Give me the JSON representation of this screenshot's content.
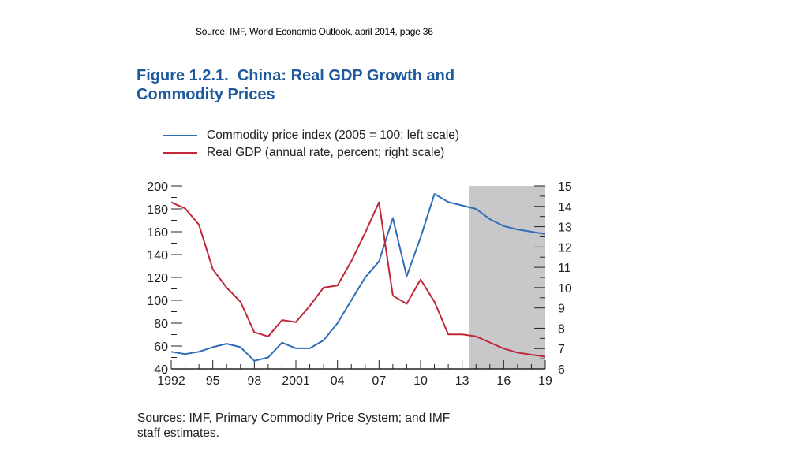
{
  "header": {
    "source_note": "Source: IMF, World Economic Outlook, april 2014, page 36"
  },
  "figure": {
    "title_line1": "Figure 1.2.1.  China: Real GDP Growth and",
    "title_line2": "Commodity Prices",
    "sources_line1": "Sources: IMF, Primary Commodity Price System; and IMF",
    "sources_line2": "staff estimates."
  },
  "colors": {
    "commodity": "#2f6db5",
    "gdp": "#c0283a",
    "shade": "#c8c8ca",
    "axis": "#222222"
  },
  "chart_data": {
    "type": "line",
    "x_tick_labels": [
      "1992",
      "95",
      "98",
      "2001",
      "04",
      "07",
      "10",
      "13",
      "16",
      "19"
    ],
    "x_tick_years": [
      1992,
      1995,
      1998,
      2001,
      2004,
      2007,
      2010,
      2013,
      2016,
      2019
    ],
    "xlim": [
      1992,
      2019
    ],
    "shaded_region": [
      2013.5,
      2019
    ],
    "left_axis": {
      "ylim": [
        40,
        200
      ],
      "ticks": [
        40,
        60,
        80,
        100,
        120,
        140,
        160,
        180,
        200
      ]
    },
    "right_axis": {
      "ylim": [
        6,
        15
      ],
      "ticks": [
        6,
        7,
        8,
        9,
        10,
        11,
        12,
        13,
        14,
        15
      ]
    },
    "legend": [
      "Commodity price index (2005 = 100; left scale)",
      "Real GDP (annual rate, percent; right scale)"
    ],
    "series": [
      {
        "name": "Commodity price index (2005 = 100; left scale)",
        "axis": "left",
        "x": [
          1992,
          1993,
          1994,
          1995,
          1996,
          1997,
          1998,
          1999,
          2000,
          2001,
          2002,
          2003,
          2004,
          2005,
          2006,
          2007,
          2008,
          2009,
          2010,
          2011,
          2012,
          2013,
          2014,
          2015,
          2016,
          2017,
          2018,
          2019
        ],
        "values": [
          55,
          53,
          55,
          59,
          62,
          59,
          47,
          50,
          63,
          58,
          58,
          65,
          80,
          100,
          120,
          134,
          172,
          121,
          155,
          193,
          186,
          183,
          180,
          171,
          165,
          162,
          160,
          158
        ]
      },
      {
        "name": "Real GDP (annual rate, percent; right scale)",
        "axis": "right",
        "x": [
          1992,
          1993,
          1994,
          1995,
          1996,
          1997,
          1998,
          1999,
          2000,
          2001,
          2002,
          2003,
          2004,
          2005,
          2006,
          2007,
          2008,
          2009,
          2010,
          2011,
          2012,
          2013,
          2014,
          2015,
          2016,
          2017,
          2018,
          2019
        ],
        "values": [
          14.2,
          13.9,
          13.1,
          10.9,
          10.0,
          9.3,
          7.8,
          7.6,
          8.4,
          8.3,
          9.1,
          10.0,
          10.1,
          11.3,
          12.7,
          14.2,
          9.6,
          9.2,
          10.4,
          9.3,
          7.7,
          7.7,
          7.6,
          7.3,
          7.0,
          6.8,
          6.7,
          6.6
        ]
      }
    ]
  }
}
